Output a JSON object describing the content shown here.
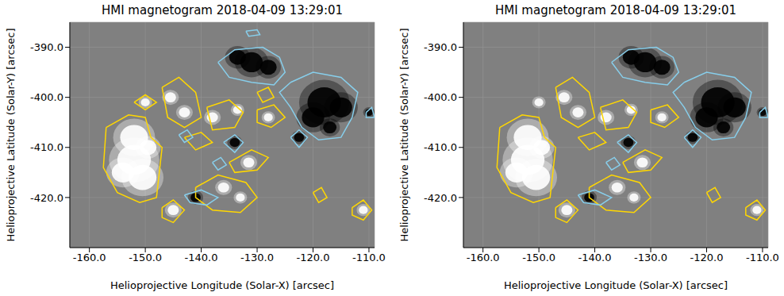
{
  "chart_data": [
    {
      "type": "scatter",
      "title": "HMI magnetogram 2018-04-09 13:29:01",
      "x_label": "Helioprojective Longitude (Solar-X) [arcsec]",
      "y_label": "Helioprojective Latitude (Solar-Y) [arcsec]",
      "xlim": [
        -163.5,
        -109
      ],
      "ylim": [
        -430,
        -385
      ],
      "grid": true,
      "xticks": [
        {
          "value": -160,
          "label": "-160.0"
        },
        {
          "value": -150,
          "label": "-150.0"
        },
        {
          "value": -140,
          "label": "-140.0"
        },
        {
          "value": -130,
          "label": "-130.0"
        },
        {
          "value": -120,
          "label": "-120.0"
        },
        {
          "value": -110,
          "label": "-110.0"
        }
      ],
      "yticks": [
        {
          "value": -420,
          "label": "-420.0"
        },
        {
          "value": -410,
          "label": "-410.0"
        },
        {
          "value": -400,
          "label": "-400.0"
        },
        {
          "value": -390,
          "label": "-390.0"
        }
      ],
      "series": [
        {
          "type": "scatter",
          "color": "#ffffff",
          "x": [
            -152,
            -152,
            -150.5,
            -154,
            -149.5,
            -145.5,
            -143,
            -138,
            -133.5,
            -128,
            -145,
            -131.5,
            -136,
            -133,
            -111,
            -150
          ],
          "y": [
            -408,
            -412.5,
            -416,
            -415,
            -410,
            -400,
            -403,
            -404,
            -402.5,
            -404,
            -422.5,
            -413,
            -418,
            -420,
            -422.5,
            -401
          ],
          "size": [
            2.5,
            3,
            2.5,
            2,
            1.5,
            1,
            1,
            1,
            0.8,
            0.8,
            1,
            1,
            1,
            0.8,
            0.8,
            0.8
          ]
        },
        {
          "type": "scatter",
          "color": "#000000",
          "x": [
            -118,
            -115,
            -120,
            -131,
            -133.5,
            -128,
            -134,
            -122.5,
            -141,
            -117,
            -110
          ],
          "y": [
            -401,
            -402,
            -404,
            -393,
            -392,
            -394,
            -409,
            -408,
            -420,
            -406,
            -403
          ],
          "size": [
            3,
            2,
            2,
            2,
            1.5,
            1.5,
            0.9,
            0.9,
            0.9,
            1.2,
            0.7
          ]
        },
        {
          "type": "line",
          "color": "#ffd700",
          "x": [
            -157,
            -153,
            -150,
            -149,
            -147,
            -147.5,
            -148,
            -151,
            -155,
            -157.5,
            -157
          ],
          "y": [
            -406,
            -403.5,
            -404,
            -408,
            -410,
            -415,
            -420,
            -421,
            -419,
            -414,
            -406
          ]
        },
        {
          "type": "line",
          "color": "#ffd700",
          "x": [
            -147,
            -144,
            -141,
            -140,
            -143,
            -146,
            -147
          ],
          "y": [
            -398,
            -396,
            -399,
            -404,
            -406,
            -404,
            -398
          ]
        },
        {
          "type": "line",
          "color": "#ffd700",
          "x": [
            -139,
            -135,
            -132.5,
            -134,
            -138,
            -139
          ],
          "y": [
            -402,
            -400.5,
            -403,
            -406,
            -406.5,
            -402
          ]
        },
        {
          "type": "line",
          "color": "#ffd700",
          "x": [
            -130,
            -127,
            -125,
            -127.5,
            -130,
            -130
          ],
          "y": [
            -402.5,
            -401.5,
            -404,
            -406,
            -405,
            -402.5
          ]
        },
        {
          "type": "line",
          "color": "#ffd700",
          "x": [
            -135,
            -131,
            -128,
            -130,
            -134,
            -135
          ],
          "y": [
            -413,
            -410.5,
            -412,
            -414.5,
            -415,
            -413
          ]
        },
        {
          "type": "line",
          "color": "#ffd700",
          "x": [
            -141,
            -137,
            -132,
            -130,
            -133,
            -138,
            -141,
            -141
          ],
          "y": [
            -418,
            -415.5,
            -417,
            -420,
            -423,
            -422.5,
            -420,
            -418
          ]
        },
        {
          "type": "line",
          "color": "#ffd700",
          "x": [
            -147,
            -145,
            -143,
            -145,
            -147,
            -147
          ],
          "y": [
            -422,
            -420.5,
            -422.5,
            -425,
            -424,
            -422
          ]
        },
        {
          "type": "line",
          "color": "#ffd700",
          "x": [
            -113,
            -111,
            -109.5,
            -111,
            -113,
            -113
          ],
          "y": [
            -422,
            -420.5,
            -422.5,
            -424.5,
            -423.5,
            -422
          ]
        },
        {
          "type": "line",
          "color": "#ffd700",
          "x": [
            -120,
            -118.5,
            -117.5,
            -119,
            -120
          ],
          "y": [
            -419,
            -418,
            -420,
            -421,
            -419
          ]
        },
        {
          "type": "line",
          "color": "#ffd700",
          "x": [
            -130,
            -128,
            -127,
            -129,
            -130
          ],
          "y": [
            -399,
            -398,
            -400,
            -401,
            -399
          ]
        },
        {
          "type": "line",
          "color": "#ffd700",
          "x": [
            -143,
            -140,
            -138,
            -141,
            -143
          ],
          "y": [
            -408,
            -407,
            -409,
            -410.5,
            -408
          ]
        },
        {
          "type": "line",
          "color": "#ffd700",
          "x": [
            -152,
            -150,
            -148,
            -150,
            -152
          ],
          "y": [
            -401,
            -399.5,
            -401,
            -402.5,
            -401
          ]
        },
        {
          "type": "line",
          "color": "#87ceeb",
          "x": [
            -137,
            -134,
            -129,
            -126,
            -125,
            -127,
            -131,
            -135,
            -137
          ],
          "y": [
            -393,
            -390.5,
            -390,
            -392,
            -395,
            -397.5,
            -397,
            -396,
            -393
          ]
        },
        {
          "type": "line",
          "color": "#87ceeb",
          "x": [
            -124,
            -120,
            -115,
            -112,
            -113,
            -115,
            -119,
            -122,
            -124,
            -126,
            -124
          ],
          "y": [
            -397,
            -395,
            -396,
            -399,
            -404,
            -408,
            -408.5,
            -406,
            -402,
            -399,
            -397
          ]
        },
        {
          "type": "line",
          "color": "#87ceeb",
          "x": [
            -136,
            -134,
            -132.5,
            -134,
            -136
          ],
          "y": [
            -409,
            -407.5,
            -409,
            -411,
            -409
          ]
        },
        {
          "type": "line",
          "color": "#87ceeb",
          "x": [
            -124,
            -122.5,
            -121,
            -122.5,
            -124
          ],
          "y": [
            -408,
            -406.5,
            -408,
            -410,
            -408
          ]
        },
        {
          "type": "line",
          "color": "#87ceeb",
          "x": [
            -143,
            -140,
            -137,
            -139,
            -142,
            -143
          ],
          "y": [
            -419.5,
            -418.5,
            -420,
            -421.5,
            -421,
            -419.5
          ]
        },
        {
          "type": "line",
          "color": "#87ceeb",
          "x": [
            -110.5,
            -109.5,
            -109,
            -110.5,
            -110.5
          ],
          "y": [
            -403,
            -402,
            -404,
            -404,
            -403
          ]
        },
        {
          "type": "line",
          "color": "#87ceeb",
          "x": [
            -138,
            -136.5,
            -135.5,
            -137,
            -138
          ],
          "y": [
            -413,
            -412,
            -413.5,
            -414.5,
            -413
          ]
        },
        {
          "type": "line",
          "color": "#87ceeb",
          "x": [
            -132,
            -130,
            -129.5,
            -131.5,
            -132
          ],
          "y": [
            -386.8,
            -386.5,
            -387.5,
            -387.8,
            -386.8
          ]
        },
        {
          "type": "line",
          "color": "#87ceeb",
          "x": [
            -144,
            -142.5,
            -141.5,
            -143,
            -144
          ],
          "y": [
            -407.5,
            -406.5,
            -408,
            -409,
            -407.5
          ]
        }
      ]
    },
    {
      "type": "scatter",
      "title": "HMI magnetogram 2018-04-09 13:29:01",
      "x_label": "Helioprojective Longitude (Solar-X) [arcsec]",
      "y_label": "Helioprojective Latitude (Solar-Y) [arcsec]",
      "xlim": [
        -163.5,
        -109
      ],
      "ylim": [
        -430,
        -385
      ],
      "grid": true,
      "xticks": [
        {
          "value": -160,
          "label": "-160.0"
        },
        {
          "value": -150,
          "label": "-150.0"
        },
        {
          "value": -140,
          "label": "-140.0"
        },
        {
          "value": -130,
          "label": "-130.0"
        },
        {
          "value": -120,
          "label": "-120.0"
        },
        {
          "value": -110,
          "label": "-110.0"
        }
      ],
      "yticks": [
        {
          "value": -420,
          "label": "-420.0"
        },
        {
          "value": -410,
          "label": "-410.0"
        },
        {
          "value": -400,
          "label": "-400.0"
        },
        {
          "value": -390,
          "label": "-390.0"
        }
      ],
      "series": [
        {
          "type": "scatter",
          "color": "#ffffff",
          "x": [
            -152,
            -152,
            -150.5,
            -154,
            -149.5,
            -145.5,
            -143,
            -138,
            -133.5,
            -128,
            -145,
            -131.5,
            -136,
            -133,
            -111,
            -150
          ],
          "y": [
            -408,
            -412.5,
            -416,
            -415,
            -410,
            -400,
            -403,
            -404,
            -402.5,
            -404,
            -422.5,
            -413,
            -418,
            -420,
            -422.5,
            -401
          ],
          "size": [
            2.5,
            3,
            2.5,
            2,
            1.5,
            1,
            1,
            1,
            0.8,
            0.8,
            1,
            1,
            1,
            0.8,
            0.8,
            0.8
          ]
        },
        {
          "type": "scatter",
          "color": "#000000",
          "x": [
            -118,
            -115,
            -120,
            -131,
            -133.5,
            -128,
            -134,
            -122.5,
            -141,
            -117,
            -110
          ],
          "y": [
            -401,
            -402,
            -404,
            -393,
            -392,
            -394,
            -409,
            -408,
            -420,
            -406,
            -403
          ],
          "size": [
            3,
            2,
            2,
            2,
            1.5,
            1.5,
            0.9,
            0.9,
            0.9,
            1.2,
            0.7
          ]
        },
        {
          "type": "line",
          "color": "#ffd700",
          "x": [
            -157,
            -153,
            -150,
            -149,
            -147,
            -147.5,
            -148,
            -151,
            -155,
            -157.5,
            -157
          ],
          "y": [
            -406,
            -403.5,
            -404,
            -408,
            -410,
            -415,
            -420,
            -421,
            -419,
            -414,
            -406
          ]
        },
        {
          "type": "line",
          "color": "#ffd700",
          "x": [
            -147,
            -144,
            -141,
            -140,
            -143,
            -146,
            -147
          ],
          "y": [
            -398,
            -396,
            -399,
            -404,
            -406,
            -404,
            -398
          ]
        },
        {
          "type": "line",
          "color": "#ffd700",
          "x": [
            -139,
            -135,
            -132.5,
            -134,
            -138,
            -139
          ],
          "y": [
            -402,
            -400.5,
            -403,
            -406,
            -406.5,
            -402
          ]
        },
        {
          "type": "line",
          "color": "#ffd700",
          "x": [
            -130,
            -127,
            -125,
            -127.5,
            -130,
            -130
          ],
          "y": [
            -402.5,
            -401.5,
            -404,
            -406,
            -405,
            -402.5
          ]
        },
        {
          "type": "line",
          "color": "#ffd700",
          "x": [
            -135,
            -131,
            -128,
            -130,
            -134,
            -135
          ],
          "y": [
            -413,
            -410.5,
            -412,
            -414.5,
            -415,
            -413
          ]
        },
        {
          "type": "line",
          "color": "#ffd700",
          "x": [
            -141,
            -137,
            -132,
            -130,
            -133,
            -138,
            -141,
            -141
          ],
          "y": [
            -418,
            -415.5,
            -417,
            -420,
            -423,
            -422.5,
            -420,
            -418
          ]
        },
        {
          "type": "line",
          "color": "#ffd700",
          "x": [
            -147,
            -145,
            -143,
            -145,
            -147,
            -147
          ],
          "y": [
            -422,
            -420.5,
            -422.5,
            -425,
            -424,
            -422
          ]
        },
        {
          "type": "line",
          "color": "#ffd700",
          "x": [
            -113,
            -111,
            -109.5,
            -111,
            -113,
            -113
          ],
          "y": [
            -422,
            -420.5,
            -422.5,
            -424.5,
            -423.5,
            -422
          ]
        },
        {
          "type": "line",
          "color": "#ffd700",
          "x": [
            -120,
            -118.5,
            -117.5,
            -119,
            -120
          ],
          "y": [
            -419,
            -418,
            -420,
            -421,
            -419
          ]
        },
        {
          "type": "line",
          "color": "#ffd700",
          "x": [
            -143,
            -140,
            -138,
            -141,
            -143
          ],
          "y": [
            -408,
            -407,
            -409,
            -410.5,
            -408
          ]
        },
        {
          "type": "line",
          "color": "#87ceeb",
          "x": [
            -137,
            -134,
            -129,
            -126,
            -125,
            -127,
            -131,
            -135,
            -137
          ],
          "y": [
            -393,
            -390.5,
            -390,
            -392,
            -395,
            -397.5,
            -397,
            -396,
            -393
          ]
        },
        {
          "type": "line",
          "color": "#87ceeb",
          "x": [
            -124,
            -120,
            -115,
            -112,
            -113,
            -115,
            -119,
            -122,
            -124,
            -126,
            -124
          ],
          "y": [
            -397,
            -395,
            -396,
            -399,
            -404,
            -408,
            -408.5,
            -406,
            -402,
            -399,
            -397
          ]
        },
        {
          "type": "line",
          "color": "#87ceeb",
          "x": [
            -136,
            -134,
            -132.5,
            -134,
            -136
          ],
          "y": [
            -409,
            -407.5,
            -409,
            -411,
            -409
          ]
        },
        {
          "type": "line",
          "color": "#87ceeb",
          "x": [
            -124,
            -122.5,
            -121,
            -122.5,
            -124
          ],
          "y": [
            -408,
            -406.5,
            -408,
            -410,
            -408
          ]
        },
        {
          "type": "line",
          "color": "#87ceeb",
          "x": [
            -143,
            -140,
            -137,
            -139,
            -142,
            -143
          ],
          "y": [
            -419.5,
            -418.5,
            -420,
            -421.5,
            -421,
            -419.5
          ]
        },
        {
          "type": "line",
          "color": "#87ceeb",
          "x": [
            -110.5,
            -109.5,
            -109,
            -110.5,
            -110.5
          ],
          "y": [
            -403,
            -402,
            -404,
            -404,
            -403
          ]
        },
        {
          "type": "line",
          "color": "#87ceeb",
          "x": [
            -138,
            -136.5,
            -135.5,
            -137,
            -138
          ],
          "y": [
            -413,
            -412,
            -413.5,
            -414.5,
            -413
          ]
        }
      ]
    }
  ]
}
